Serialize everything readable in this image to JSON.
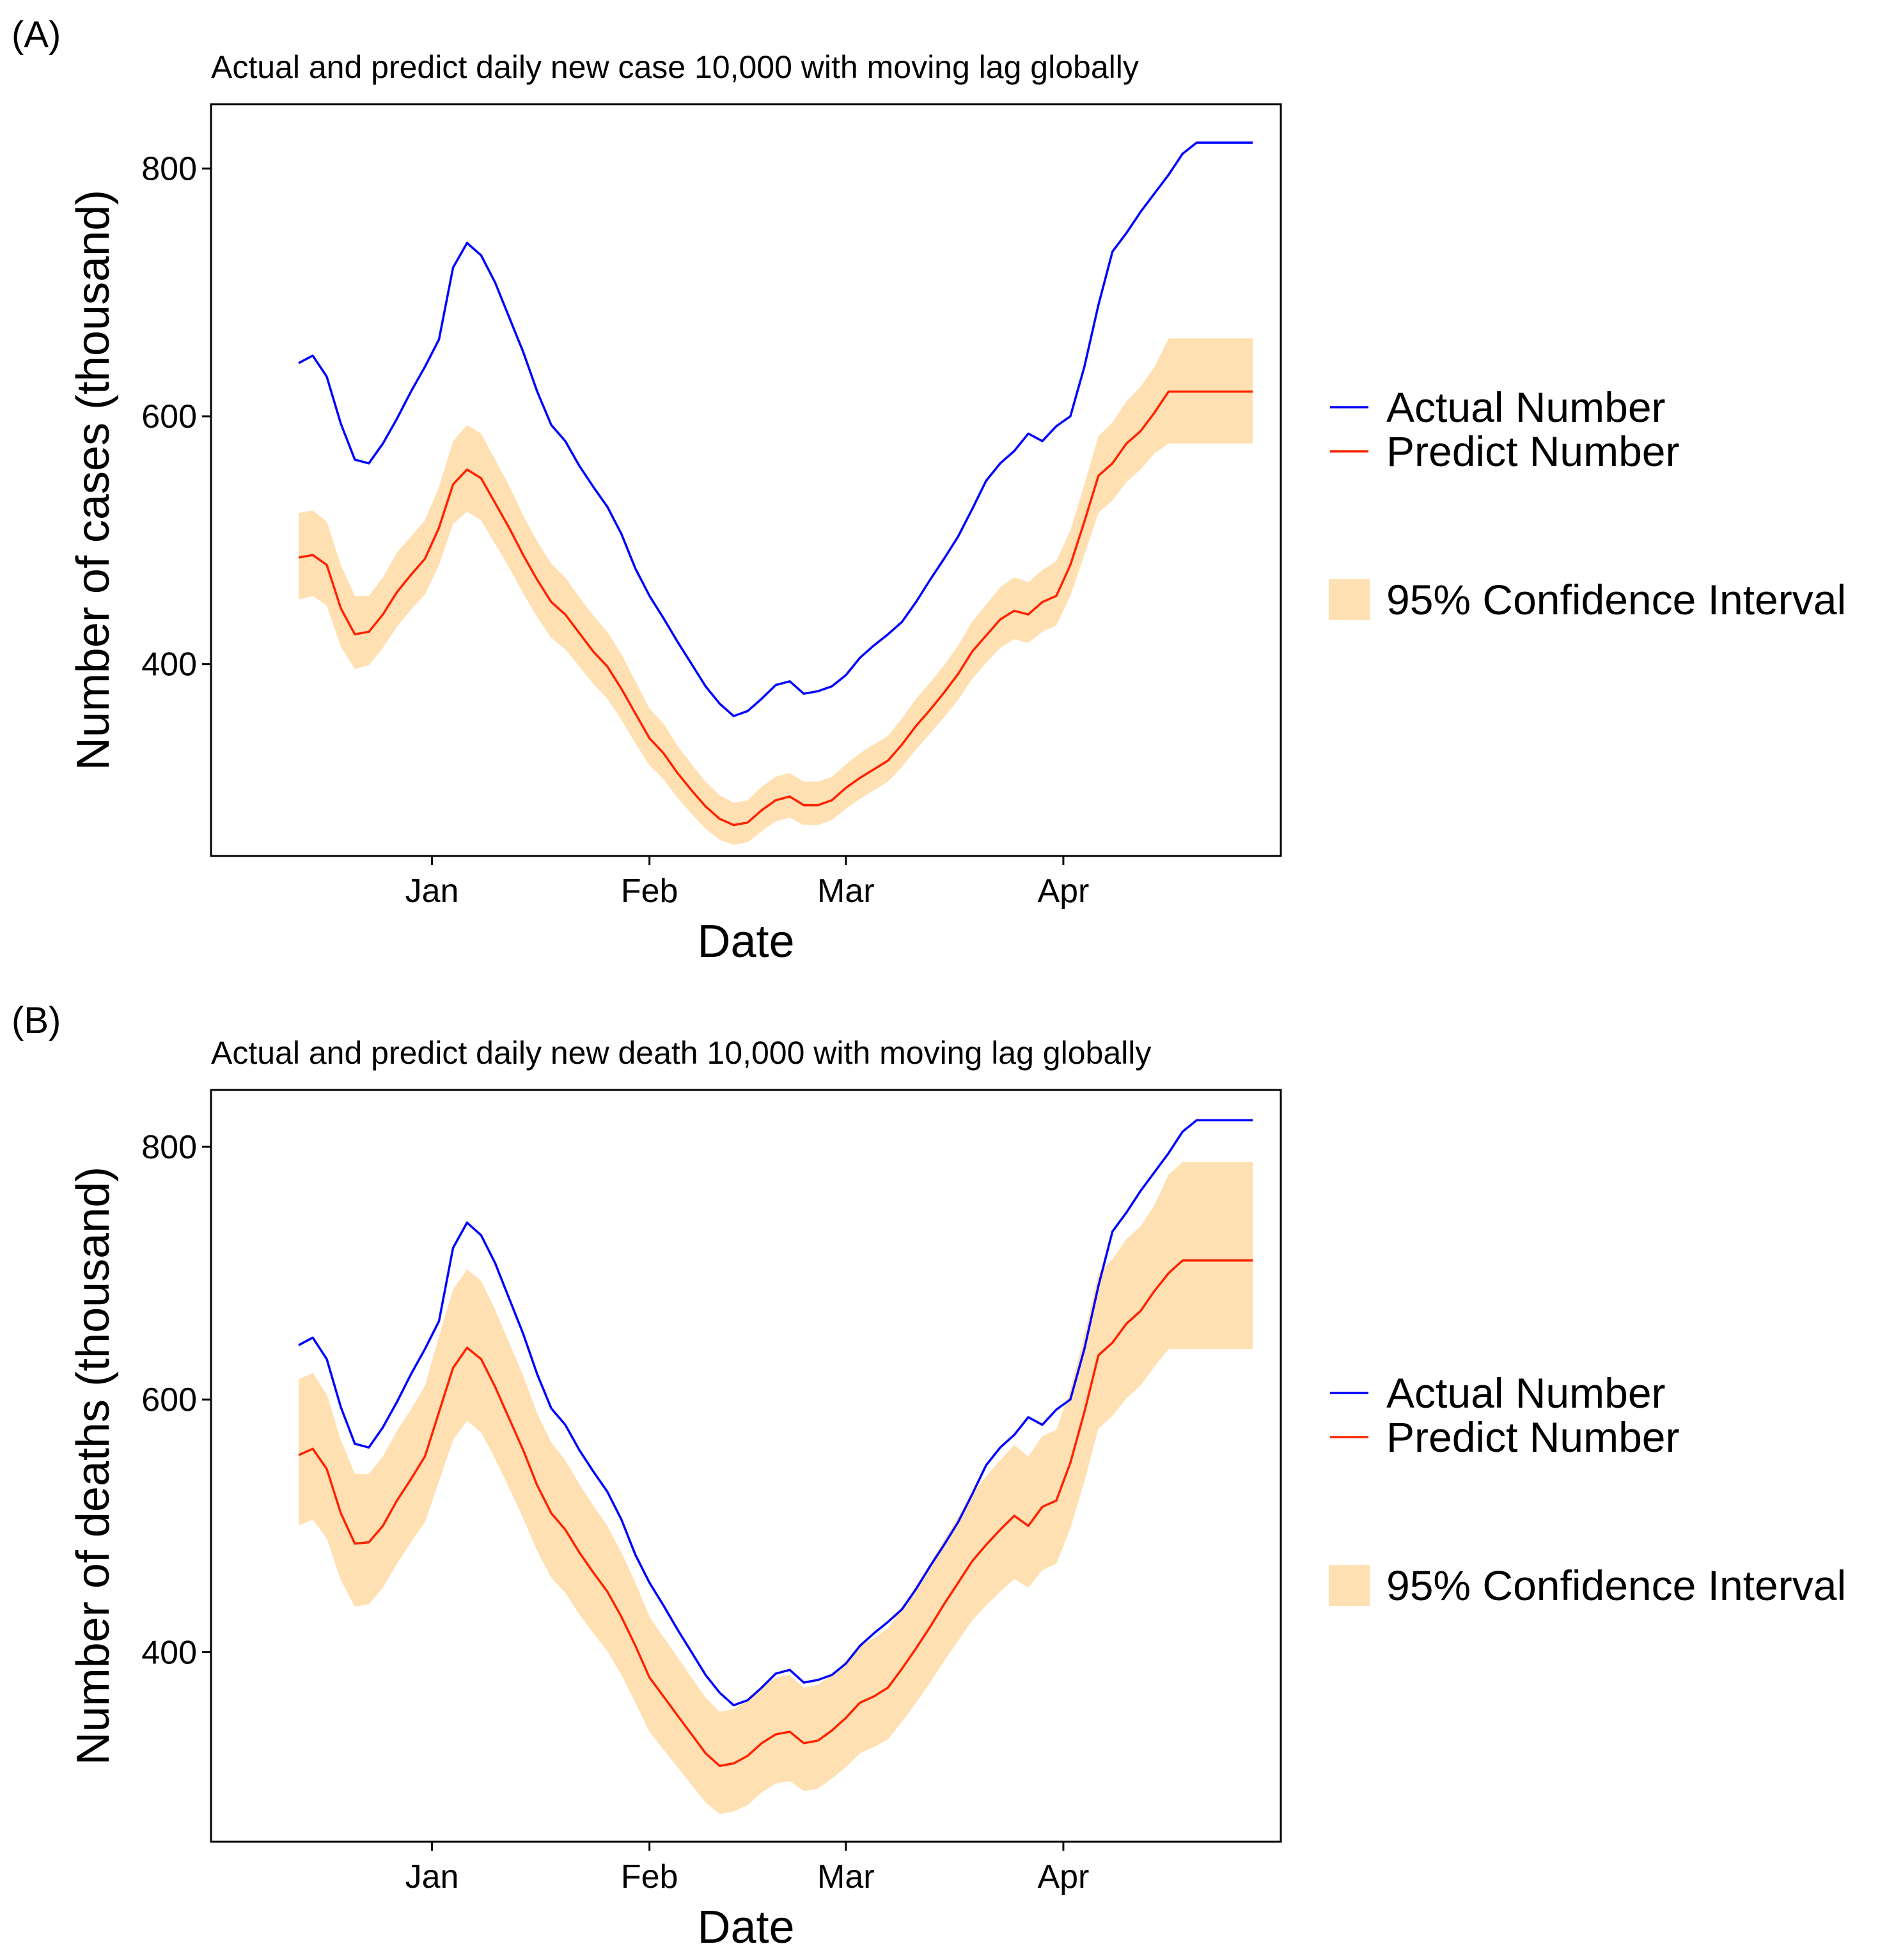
{
  "chart_data": [
    {
      "type": "line",
      "panel_label": "(A)",
      "title": "Actual and predict daily new case 10,000 with moving lag globally",
      "xlabel": "Date",
      "ylabel": "Number of cases (thousand)",
      "x_unit": "day offset from Dec 1",
      "xlim": [
        -0.5,
        152
      ],
      "ylim": [
        245,
        852
      ],
      "x_ticks": [
        {
          "label": "Jan",
          "value": 31
        },
        {
          "label": "Feb",
          "value": 62
        },
        {
          "label": "Mar",
          "value": 90
        },
        {
          "label": "Apr",
          "value": 121
        }
      ],
      "y_ticks": [
        400,
        600,
        800
      ],
      "grid": false,
      "legend": {
        "position": "right",
        "entries": [
          {
            "label": "Actual Number",
            "kind": "line",
            "color": "#0000ff"
          },
          {
            "label": "Predict Number",
            "kind": "line",
            "color": "#ff2200"
          },
          {
            "label": "95% Confidence Interval",
            "kind": "band",
            "color": "#ffe0b2"
          }
        ]
      },
      "series": [
        {
          "name": "Actual Number",
          "color": "#0000ff",
          "x": [
            12,
            14,
            16,
            18,
            20,
            22,
            24,
            26,
            28,
            30,
            32,
            34,
            36,
            38,
            40,
            42,
            44,
            46,
            48,
            50,
            52,
            54,
            56,
            58,
            60,
            62,
            64,
            66,
            68,
            70,
            72,
            74,
            76,
            78,
            80,
            82,
            84,
            86,
            88,
            90,
            92,
            94,
            96,
            98,
            100,
            102,
            104,
            106,
            108,
            110,
            112,
            114,
            116,
            118,
            120,
            122,
            124,
            126,
            128,
            130,
            132,
            134,
            136,
            138,
            140,
            142,
            144,
            146,
            148
          ],
          "values": [
            643,
            649,
            632,
            594,
            565,
            562,
            578,
            598,
            620,
            640,
            662,
            720,
            740,
            730,
            708,
            680,
            652,
            620,
            593,
            580,
            560,
            543,
            527,
            505,
            477,
            455,
            437,
            418,
            400,
            382,
            368,
            358,
            362,
            372,
            383,
            386,
            376,
            378,
            382,
            391,
            405,
            415,
            424,
            434,
            450,
            468,
            485,
            503,
            525,
            548,
            562,
            572,
            586,
            580,
            592,
            600,
            640,
            690,
            733,
            748,
            765,
            780,
            795,
            812,
            821,
            821,
            821,
            821,
            821
          ]
        },
        {
          "name": "Predict Number",
          "color": "#ff2200",
          "x": [
            12,
            14,
            16,
            18,
            20,
            22,
            24,
            26,
            28,
            30,
            32,
            34,
            36,
            38,
            40,
            42,
            44,
            46,
            48,
            50,
            52,
            54,
            56,
            58,
            60,
            62,
            64,
            66,
            68,
            70,
            72,
            74,
            76,
            78,
            80,
            82,
            84,
            86,
            88,
            90,
            92,
            94,
            96,
            98,
            100,
            102,
            104,
            106,
            108,
            110,
            112,
            114,
            116,
            118,
            120,
            122,
            124,
            126,
            128,
            130,
            132,
            134,
            136,
            138,
            140,
            142,
            144,
            146,
            148
          ],
          "values": [
            486,
            488,
            480,
            445,
            424,
            426,
            440,
            458,
            472,
            485,
            510,
            545,
            557,
            550,
            530,
            510,
            488,
            468,
            450,
            440,
            425,
            410,
            398,
            380,
            360,
            340,
            328,
            312,
            298,
            285,
            275,
            270,
            272,
            282,
            290,
            293,
            286,
            286,
            290,
            300,
            308,
            315,
            322,
            335,
            350,
            363,
            377,
            392,
            410,
            423,
            436,
            443,
            440,
            450,
            455,
            480,
            515,
            552,
            562,
            578,
            588,
            603,
            620,
            620,
            620,
            620,
            620,
            620,
            620
          ]
        }
      ],
      "band": {
        "name": "95% Confidence Interval",
        "color": "#ffe0b2",
        "x": [
          12,
          14,
          16,
          18,
          20,
          22,
          24,
          26,
          28,
          30,
          32,
          34,
          36,
          38,
          40,
          42,
          44,
          46,
          48,
          50,
          52,
          54,
          56,
          58,
          60,
          62,
          64,
          66,
          68,
          70,
          72,
          74,
          76,
          78,
          80,
          82,
          84,
          86,
          88,
          90,
          92,
          94,
          96,
          98,
          100,
          102,
          104,
          106,
          108,
          110,
          112,
          114,
          116,
          118,
          120,
          122,
          124,
          126,
          128,
          130,
          132,
          134,
          136,
          138,
          140,
          142,
          144,
          146,
          148
        ],
        "lower": [
          452,
          455,
          447,
          414,
          396,
          399,
          413,
          430,
          444,
          456,
          480,
          513,
          523,
          516,
          497,
          478,
          457,
          438,
          421,
          412,
          398,
          384,
          372,
          355,
          336,
          318,
          307,
          292,
          279,
          267,
          258,
          254,
          256,
          265,
          273,
          276,
          270,
          270,
          274,
          283,
          291,
          298,
          305,
          317,
          331,
          344,
          357,
          371,
          388,
          401,
          413,
          420,
          417,
          426,
          431,
          455,
          488,
          522,
          532,
          547,
          557,
          570,
          578,
          578,
          578,
          578,
          578,
          578,
          578
        ],
        "upper": [
          522,
          524,
          515,
          480,
          455,
          455,
          470,
          490,
          503,
          516,
          543,
          580,
          593,
          586,
          565,
          544,
          520,
          499,
          481,
          470,
          454,
          439,
          426,
          408,
          386,
          364,
          352,
          334,
          319,
          305,
          294,
          288,
          290,
          301,
          309,
          312,
          305,
          305,
          309,
          319,
          328,
          335,
          342,
          356,
          372,
          385,
          399,
          415,
          434,
          448,
          462,
          470,
          466,
          476,
          483,
          508,
          545,
          584,
          595,
          612,
          624,
          640,
          663,
          663,
          663,
          663,
          663,
          663,
          663
        ]
      }
    },
    {
      "type": "line",
      "panel_label": "(B)",
      "title": "Actual and predict daily new death 10,000 with moving lag globally",
      "xlabel": "Date",
      "ylabel": "Number of deaths (thousand)",
      "x_unit": "day offset from Dec 1",
      "xlim": [
        -0.5,
        152
      ],
      "ylim": [
        250,
        845
      ],
      "x_ticks": [
        {
          "label": "Jan",
          "value": 31
        },
        {
          "label": "Feb",
          "value": 62
        },
        {
          "label": "Mar",
          "value": 90
        },
        {
          "label": "Apr",
          "value": 121
        }
      ],
      "y_ticks": [
        400,
        600,
        800
      ],
      "grid": false,
      "legend": {
        "position": "right",
        "entries": [
          {
            "label": "Actual Number",
            "kind": "line",
            "color": "#0000ff"
          },
          {
            "label": "Predict Number",
            "kind": "line",
            "color": "#ff2200"
          },
          {
            "label": "95% Confidence Interval",
            "kind": "band",
            "color": "#ffe0b2"
          }
        ]
      },
      "series": [
        {
          "name": "Actual Number",
          "color": "#0000ff",
          "x": [
            12,
            14,
            16,
            18,
            20,
            22,
            24,
            26,
            28,
            30,
            32,
            34,
            36,
            38,
            40,
            42,
            44,
            46,
            48,
            50,
            52,
            54,
            56,
            58,
            60,
            62,
            64,
            66,
            68,
            70,
            72,
            74,
            76,
            78,
            80,
            82,
            84,
            86,
            88,
            90,
            92,
            94,
            96,
            98,
            100,
            102,
            104,
            106,
            108,
            110,
            112,
            114,
            116,
            118,
            120,
            122,
            124,
            126,
            128,
            130,
            132,
            134,
            136,
            138,
            140,
            142,
            144,
            146,
            148
          ],
          "values": [
            643,
            649,
            632,
            594,
            565,
            562,
            578,
            598,
            620,
            640,
            662,
            720,
            740,
            730,
            708,
            680,
            652,
            620,
            593,
            580,
            560,
            543,
            527,
            505,
            477,
            455,
            437,
            418,
            400,
            382,
            368,
            358,
            362,
            372,
            383,
            386,
            376,
            378,
            382,
            391,
            405,
            415,
            424,
            434,
            450,
            468,
            485,
            503,
            525,
            548,
            562,
            572,
            586,
            580,
            592,
            600,
            640,
            690,
            733,
            748,
            765,
            780,
            795,
            812,
            821,
            821,
            821,
            821,
            821
          ]
        },
        {
          "name": "Predict Number",
          "color": "#ff2200",
          "x": [
            12,
            14,
            16,
            18,
            20,
            22,
            24,
            26,
            28,
            30,
            32,
            34,
            36,
            38,
            40,
            42,
            44,
            46,
            48,
            50,
            52,
            54,
            56,
            58,
            60,
            62,
            64,
            66,
            68,
            70,
            72,
            74,
            76,
            78,
            80,
            82,
            84,
            86,
            88,
            90,
            92,
            94,
            96,
            98,
            100,
            102,
            104,
            106,
            108,
            110,
            112,
            114,
            116,
            118,
            120,
            122,
            124,
            126,
            128,
            130,
            132,
            134,
            136,
            138,
            140,
            142,
            144,
            146,
            148
          ],
          "values": [
            556,
            561,
            545,
            510,
            486,
            487,
            500,
            520,
            537,
            555,
            590,
            625,
            641,
            632,
            610,
            585,
            560,
            532,
            510,
            497,
            479,
            463,
            448,
            428,
            405,
            380,
            365,
            350,
            335,
            320,
            310,
            312,
            318,
            328,
            335,
            337,
            328,
            330,
            338,
            348,
            360,
            365,
            372,
            387,
            403,
            420,
            438,
            455,
            472,
            485,
            497,
            508,
            500,
            515,
            520,
            550,
            590,
            635,
            645,
            660,
            670,
            686,
            700,
            710,
            710,
            710,
            710,
            710,
            710
          ]
        }
      ],
      "band": {
        "name": "95% Confidence Interval",
        "color": "#ffe0b2",
        "x": [
          12,
          14,
          16,
          18,
          20,
          22,
          24,
          26,
          28,
          30,
          32,
          34,
          36,
          38,
          40,
          42,
          44,
          46,
          48,
          50,
          52,
          54,
          56,
          58,
          60,
          62,
          64,
          66,
          68,
          70,
          72,
          74,
          76,
          78,
          80,
          82,
          84,
          86,
          88,
          90,
          92,
          94,
          96,
          98,
          100,
          102,
          104,
          106,
          108,
          110,
          112,
          114,
          116,
          118,
          120,
          122,
          124,
          126,
          128,
          130,
          132,
          134,
          136,
          138,
          140,
          142,
          144,
          146,
          148
        ],
        "lower": [
          500,
          505,
          490,
          457,
          436,
          438,
          451,
          470,
          487,
          503,
          535,
          568,
          583,
          574,
          553,
          530,
          506,
          480,
          459,
          447,
          430,
          415,
          401,
          382,
          360,
          337,
          323,
          309,
          295,
          281,
          272,
          274,
          279,
          289,
          296,
          298,
          290,
          292,
          300,
          309,
          320,
          325,
          331,
          345,
          360,
          376,
          393,
          409,
          425,
          437,
          448,
          458,
          451,
          465,
          470,
          498,
          535,
          577,
          587,
          601,
          611,
          626,
          640,
          640,
          640,
          640,
          640,
          640,
          640
        ],
        "upper": [
          616,
          621,
          604,
          568,
          541,
          541,
          555,
          575,
          592,
          611,
          650,
          687,
          703,
          694,
          671,
          645,
          619,
          589,
          566,
          552,
          533,
          516,
          500,
          479,
          455,
          428,
          412,
          396,
          380,
          364,
          353,
          355,
          362,
          372,
          380,
          382,
          372,
          374,
          382,
          393,
          406,
          411,
          419,
          435,
          452,
          470,
          489,
          507,
          525,
          539,
          552,
          564,
          555,
          571,
          576,
          608,
          651,
          700,
          711,
          727,
          737,
          754,
          778,
          788,
          788,
          788,
          788,
          788,
          788
        ]
      }
    }
  ]
}
